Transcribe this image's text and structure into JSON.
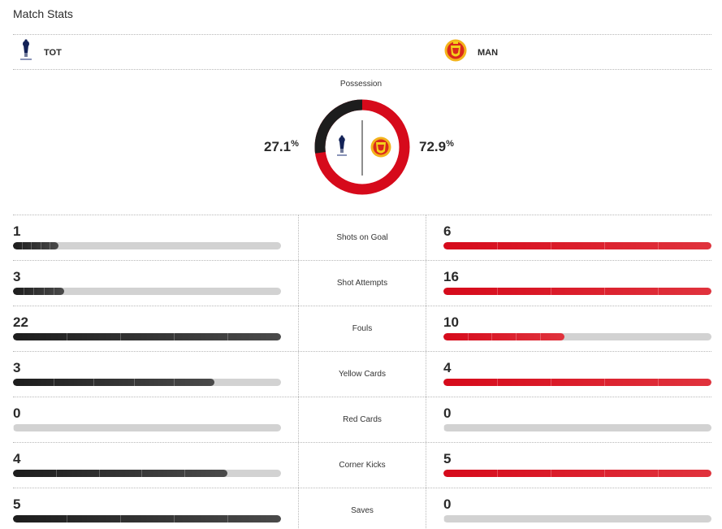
{
  "title": "Match Stats",
  "colors": {
    "home": "#1d1d1d",
    "away": "#d60a1b",
    "track": "#d2d2d2"
  },
  "teams": {
    "home": {
      "name": "TOT",
      "logo": "tottenham-crest-icon"
    },
    "away": {
      "name": "MAN",
      "logo": "man-united-crest-icon"
    }
  },
  "possession": {
    "label": "Possession",
    "home": "27.1",
    "away": "72.9",
    "unit": "%",
    "home_fraction": 0.271,
    "away_fraction": 0.729
  },
  "stats": [
    {
      "label": "Shots on Goal",
      "home": "1",
      "away": "6",
      "home_fill": 0.17,
      "away_fill": 1.0
    },
    {
      "label": "Shot Attempts",
      "home": "3",
      "away": "16",
      "home_fill": 0.19,
      "away_fill": 1.0
    },
    {
      "label": "Fouls",
      "home": "22",
      "away": "10",
      "home_fill": 1.0,
      "away_fill": 0.45
    },
    {
      "label": "Yellow Cards",
      "home": "3",
      "away": "4",
      "home_fill": 0.75,
      "away_fill": 1.0
    },
    {
      "label": "Red Cards",
      "home": "0",
      "away": "0",
      "home_fill": 0.0,
      "away_fill": 0.0
    },
    {
      "label": "Corner Kicks",
      "home": "4",
      "away": "5",
      "home_fill": 0.8,
      "away_fill": 1.0
    },
    {
      "label": "Saves",
      "home": "5",
      "away": "0",
      "home_fill": 1.0,
      "away_fill": 0.0
    }
  ]
}
